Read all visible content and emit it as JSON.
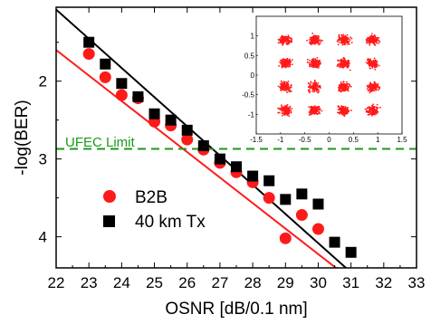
{
  "chart_data": {
    "type": "scatter",
    "xlabel": "OSNR [dB/0.1 nm]",
    "ylabel": "-log(BER)",
    "xlim": [
      22,
      33
    ],
    "ylim": [
      1.05,
      4.4
    ],
    "y_inverted": true,
    "x_ticks": [
      "22",
      "23",
      "24",
      "25",
      "26",
      "27",
      "28",
      "29",
      "30",
      "31",
      "32",
      "33"
    ],
    "y_ticks": [
      "2",
      "3",
      "4"
    ],
    "reference_line": {
      "label": "UFEC Limit",
      "y": 2.87,
      "color": "#1a9a1a",
      "style": "dashed"
    },
    "legend_position": "bottom-left",
    "series": [
      {
        "name": "B2B",
        "marker": "circle",
        "color": "#ff1a1a",
        "x": [
          23,
          23.5,
          24,
          24.5,
          25,
          25.5,
          26,
          26.5,
          27,
          27.5,
          28,
          28.5,
          29,
          29.5,
          30
        ],
        "y": [
          1.65,
          1.95,
          2.18,
          2.22,
          2.52,
          2.57,
          2.75,
          2.88,
          3.05,
          3.17,
          3.3,
          3.5,
          4.02,
          3.72,
          3.9
        ],
        "fit": {
          "x": [
            22,
            30.6
          ],
          "y": [
            1.6,
            4.42
          ]
        }
      },
      {
        "name": "40 km Tx",
        "marker": "square",
        "color": "#000000",
        "x": [
          23,
          23.5,
          24,
          24.5,
          25,
          25.5,
          26,
          26.5,
          27,
          27.5,
          28,
          28.5,
          29,
          29.5,
          30,
          30.5,
          31
        ],
        "y": [
          1.5,
          1.78,
          2.03,
          2.2,
          2.42,
          2.5,
          2.63,
          2.83,
          3.0,
          3.1,
          3.22,
          3.28,
          3.52,
          3.45,
          3.58,
          4.07,
          4.2
        ],
        "fit": {
          "x": [
            22,
            30.9
          ],
          "y": [
            1.08,
            4.42
          ]
        }
      }
    ],
    "inset": {
      "type": "scatter",
      "description": "16-QAM constellation",
      "xlim": [
        -1.5,
        1.5
      ],
      "ylim": [
        -1.5,
        1.5
      ],
      "x_ticks": [
        "-1.5",
        "-1",
        "-0.5",
        "0",
        "0.5",
        "1",
        "1.5"
      ],
      "y_ticks": [
        "1",
        "0.5",
        "0",
        "-0.5",
        "-1"
      ],
      "points_color": "#ff1a1a",
      "cluster_centers": [
        -0.9,
        -0.3,
        0.3,
        0.9
      ]
    }
  }
}
